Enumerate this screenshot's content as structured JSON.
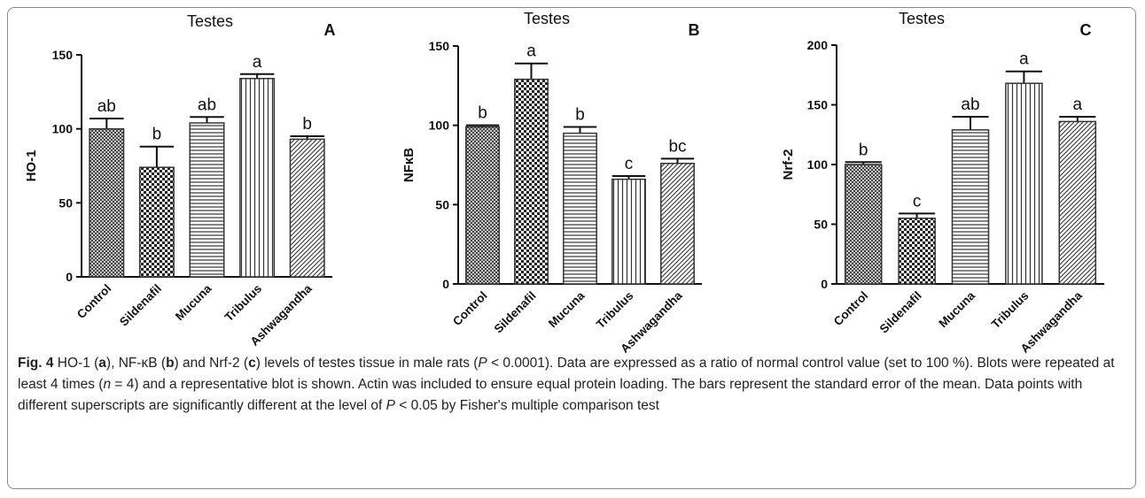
{
  "chart_data": [
    {
      "type": "bar",
      "title": "Testes",
      "panel": "A",
      "ylabel": "HO-1",
      "categories": [
        "Control",
        "Sildenafil",
        "Mucuna",
        "Tribulus",
        "Ashwagandha"
      ],
      "values": [
        100,
        74,
        104,
        134,
        93
      ],
      "errors": [
        7,
        14,
        4,
        3,
        2
      ],
      "letters": [
        "ab",
        "b",
        "ab",
        "a",
        "b"
      ],
      "ylim": [
        0,
        150
      ],
      "yticks": [
        0,
        50,
        100,
        150
      ],
      "color": "#333333"
    },
    {
      "type": "bar",
      "title": "Testes",
      "panel": "B",
      "ylabel": "NFκB",
      "categories": [
        "Control",
        "Sildenafil",
        "Mucuna",
        "Tribulus",
        "Ashwagandha"
      ],
      "values": [
        99,
        129,
        95,
        66,
        76
      ],
      "errors": [
        1,
        10,
        4,
        2,
        3
      ],
      "letters": [
        "b",
        "a",
        "b",
        "c",
        "bc"
      ],
      "ylim": [
        0,
        150
      ],
      "yticks": [
        0,
        50,
        100,
        150
      ],
      "color": "#333333"
    },
    {
      "type": "bar",
      "title": "Testes",
      "panel": "C",
      "ylabel": "Nrf-2",
      "categories": [
        "Control",
        "Sildenafil",
        "Mucuna",
        "Tribulus",
        "Ashwagandha"
      ],
      "values": [
        100,
        55,
        129,
        168,
        136
      ],
      "errors": [
        2,
        4,
        11,
        10,
        4
      ],
      "letters": [
        "b",
        "c",
        "ab",
        "a",
        "a"
      ],
      "ylim": [
        0,
        200
      ],
      "yticks": [
        0,
        50,
        100,
        150,
        200
      ],
      "color": "#333333"
    }
  ],
  "caption": {
    "parts": [
      "Fig. 4",
      " HO-1 (",
      "a",
      "), NF-κB (",
      "b",
      ") and Nrf-2 (",
      "c",
      ") levels of testes tissue in male rats (",
      "P",
      " < 0.0001). Data are expressed as a ratio of normal control value (set to 100 %). Blots were repeated at least 4 times (",
      "n",
      " = 4) and a representative blot is shown. Actin was included to ensure equal protein loading. The bars represent the standard error of the mean. Data points with different superscripts are significantly different at the level of ",
      "P",
      " < 0.05 by Fisher's multiple comparison test"
    ]
  }
}
